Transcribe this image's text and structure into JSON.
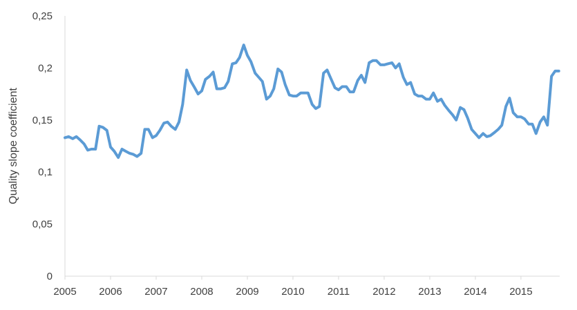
{
  "chart_data": {
    "type": "line",
    "title": "",
    "xlabel": "",
    "ylabel": "Quality slope coefficient",
    "xlim": [
      2005,
      2015.85
    ],
    "ylim": [
      0,
      0.25
    ],
    "grid": false,
    "legend": "none",
    "x_ticks": [
      "2005",
      "2006",
      "2007",
      "2008",
      "2009",
      "2010",
      "2011",
      "2012",
      "2013",
      "2014",
      "2015"
    ],
    "y_ticks": [
      "0",
      "0,05",
      "0,1",
      "0,15",
      "0,2",
      "0,25"
    ],
    "series": [
      {
        "name": "",
        "color": "#5b9bd5",
        "x": [
          2005.0,
          2005.08,
          2005.17,
          2005.25,
          2005.33,
          2005.42,
          2005.5,
          2005.58,
          2005.67,
          2005.75,
          2005.83,
          2005.92,
          2006.0,
          2006.08,
          2006.17,
          2006.25,
          2006.33,
          2006.42,
          2006.5,
          2006.58,
          2006.67,
          2006.75,
          2006.83,
          2006.92,
          2007.0,
          2007.08,
          2007.17,
          2007.25,
          2007.33,
          2007.42,
          2007.5,
          2007.58,
          2007.67,
          2007.75,
          2007.83,
          2007.92,
          2008.0,
          2008.08,
          2008.17,
          2008.25,
          2008.33,
          2008.42,
          2008.5,
          2008.58,
          2008.67,
          2008.75,
          2008.83,
          2008.92,
          2009.0,
          2009.08,
          2009.17,
          2009.25,
          2009.33,
          2009.42,
          2009.5,
          2009.58,
          2009.67,
          2009.75,
          2009.83,
          2009.92,
          2010.0,
          2010.08,
          2010.17,
          2010.25,
          2010.33,
          2010.42,
          2010.5,
          2010.58,
          2010.67,
          2010.75,
          2010.83,
          2010.92,
          2011.0,
          2011.08,
          2011.17,
          2011.25,
          2011.33,
          2011.42,
          2011.5,
          2011.58,
          2011.67,
          2011.75,
          2011.83,
          2011.92,
          2012.0,
          2012.08,
          2012.17,
          2012.25,
          2012.33,
          2012.42,
          2012.5,
          2012.58,
          2012.67,
          2012.75,
          2012.83,
          2012.92,
          2013.0,
          2013.08,
          2013.17,
          2013.25,
          2013.33,
          2013.42,
          2013.5,
          2013.58,
          2013.67,
          2013.75,
          2013.83,
          2013.92,
          2014.0,
          2014.08,
          2014.17,
          2014.25,
          2014.33,
          2014.42,
          2014.5,
          2014.58,
          2014.67,
          2014.75,
          2014.83,
          2014.92,
          2015.0,
          2015.08,
          2015.17,
          2015.25,
          2015.33,
          2015.42,
          2015.5,
          2015.58,
          2015.67,
          2015.75,
          2015.83
        ],
        "y": [
          0.133,
          0.134,
          0.132,
          0.134,
          0.131,
          0.127,
          0.121,
          0.122,
          0.122,
          0.144,
          0.143,
          0.14,
          0.124,
          0.12,
          0.114,
          0.122,
          0.12,
          0.118,
          0.117,
          0.115,
          0.118,
          0.141,
          0.141,
          0.133,
          0.135,
          0.14,
          0.147,
          0.148,
          0.144,
          0.141,
          0.148,
          0.165,
          0.198,
          0.188,
          0.182,
          0.175,
          0.178,
          0.189,
          0.192,
          0.196,
          0.18,
          0.18,
          0.181,
          0.187,
          0.204,
          0.205,
          0.21,
          0.222,
          0.212,
          0.206,
          0.195,
          0.191,
          0.187,
          0.17,
          0.173,
          0.18,
          0.199,
          0.196,
          0.184,
          0.174,
          0.173,
          0.173,
          0.176,
          0.176,
          0.176,
          0.165,
          0.161,
          0.163,
          0.195,
          0.198,
          0.19,
          0.181,
          0.179,
          0.182,
          0.182,
          0.177,
          0.177,
          0.188,
          0.193,
          0.186,
          0.205,
          0.207,
          0.207,
          0.203,
          0.203,
          0.204,
          0.205,
          0.2,
          0.204,
          0.191,
          0.184,
          0.186,
          0.175,
          0.173,
          0.173,
          0.17,
          0.17,
          0.176,
          0.168,
          0.17,
          0.164,
          0.159,
          0.155,
          0.15,
          0.162,
          0.16,
          0.152,
          0.141,
          0.137,
          0.133,
          0.137,
          0.134,
          0.135,
          0.138,
          0.141,
          0.145,
          0.163,
          0.171,
          0.157,
          0.153,
          0.153,
          0.151,
          0.146,
          0.146,
          0.137,
          0.148,
          0.153,
          0.145,
          0.192,
          0.197,
          0.197
        ]
      }
    ]
  }
}
